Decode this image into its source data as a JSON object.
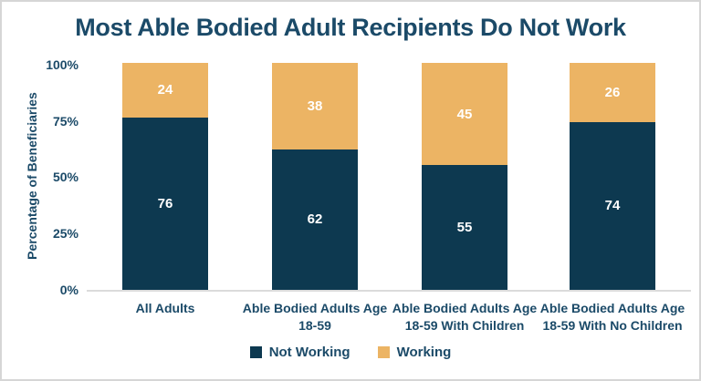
{
  "title": "Most Able Bodied Adult Recipients Do Not Work",
  "y_axis": {
    "label": "Percentage of Beneficiaries",
    "ticks": [
      "100%",
      "75%",
      "50%",
      "25%",
      "0%"
    ]
  },
  "chart_data": {
    "type": "bar",
    "stacked": true,
    "title": "Most Able Bodied Adult Recipients Do Not Work",
    "xlabel": "",
    "ylabel": "Percentage of Beneficiaries",
    "ylim": [
      0,
      100
    ],
    "grid": false,
    "legend_position": "bottom",
    "categories": [
      "All Adults",
      "Able Bodied Adults Age\n18-59",
      "Able Bodied Adults Age\n18-59 With Children",
      "Able Bodied Adults Age\n18-59 With No Children"
    ],
    "series": [
      {
        "name": "Not Working",
        "values": [
          76,
          62,
          55,
          74
        ],
        "color": "#0D3950"
      },
      {
        "name": "Working",
        "values": [
          24,
          38,
          45,
          26
        ],
        "color": "#ECB464"
      }
    ]
  },
  "colors": {
    "not_working": "#0D3950",
    "working": "#ECB464",
    "text": "#1B4A68",
    "axis_line": "#DBDBDB",
    "value_label": "#FFFFFF",
    "border": "#D6D6D6"
  }
}
